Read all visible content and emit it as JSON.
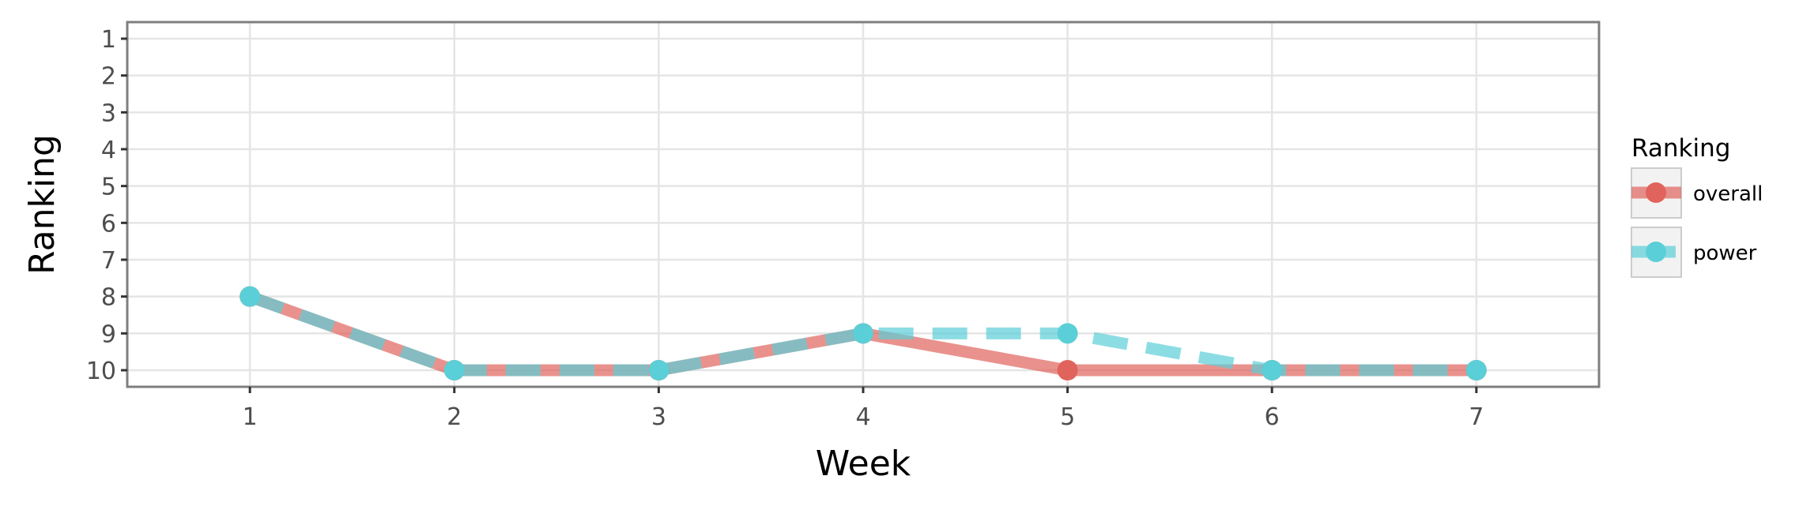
{
  "chart_data": {
    "type": "line",
    "title": "",
    "xlabel": "Week",
    "ylabel": "Ranking",
    "x": [
      1,
      2,
      3,
      4,
      5,
      6,
      7
    ],
    "xlim": [
      0.4,
      7.6
    ],
    "ylim": [
      10.45,
      0.55
    ],
    "y_reversed": true,
    "x_ticks": [
      "1",
      "2",
      "3",
      "4",
      "5",
      "6",
      "7"
    ],
    "y_ticks": [
      "1",
      "2",
      "3",
      "4",
      "5",
      "6",
      "7",
      "8",
      "9",
      "10"
    ],
    "grid": true,
    "legend": {
      "title": "Ranking",
      "position": "right"
    },
    "series": [
      {
        "name": "overall",
        "values": [
          8,
          10,
          10,
          9,
          10,
          10,
          10
        ],
        "color": "#E0645C",
        "line_style": "solid"
      },
      {
        "name": "power",
        "values": [
          8,
          10,
          10,
          9,
          9,
          10,
          10
        ],
        "color": "#5BCFD7",
        "line_style": "dashed"
      }
    ]
  }
}
